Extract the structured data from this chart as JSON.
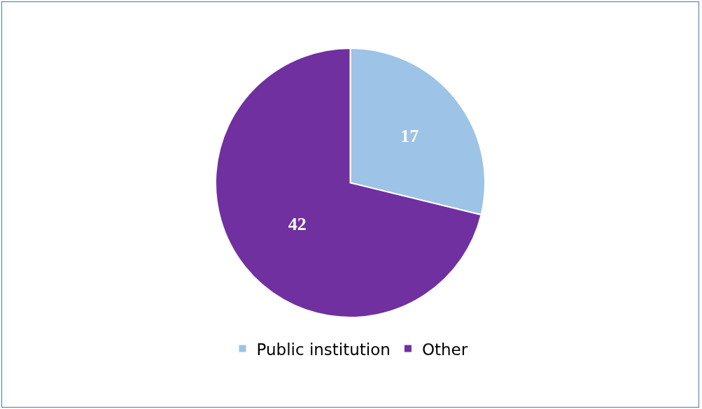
{
  "chart_data": {
    "type": "pie",
    "categories": [
      "Public institution",
      "Other"
    ],
    "values": [
      17,
      42
    ],
    "colors": [
      "#9dc3e6",
      "#7030a0"
    ],
    "data_labels": true,
    "legend": "bottom"
  }
}
